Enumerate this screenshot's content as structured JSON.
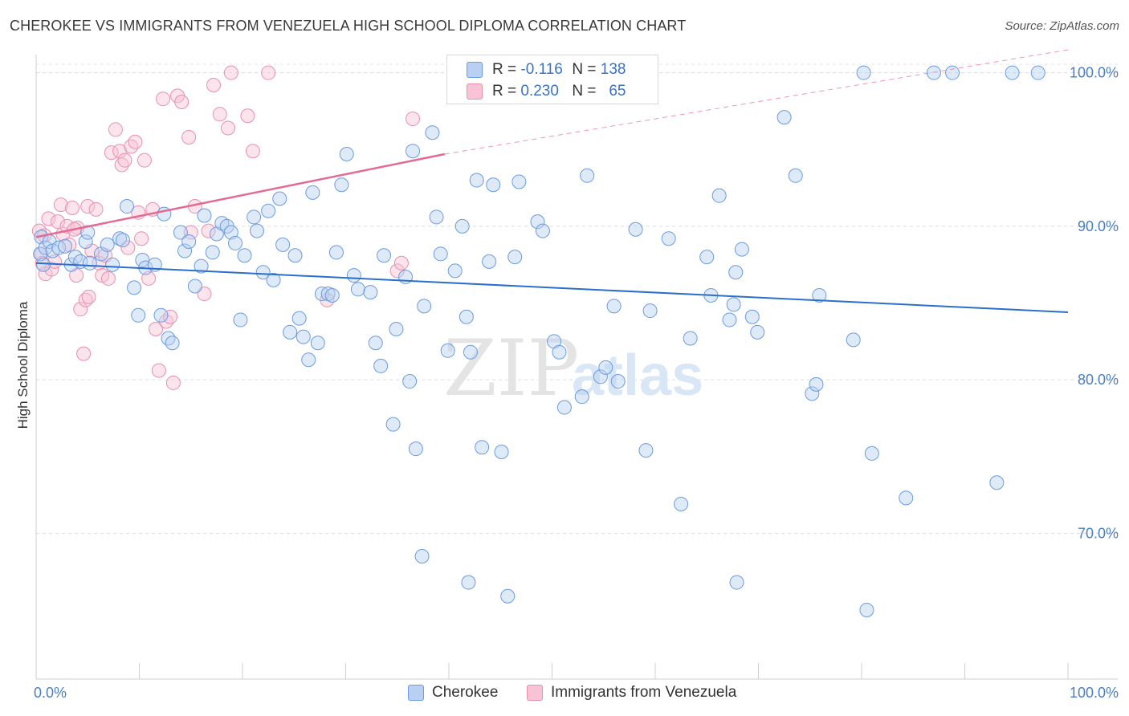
{
  "title": "CHEROKEE VS IMMIGRANTS FROM VENEZUELA HIGH SCHOOL DIPLOMA CORRELATION CHART",
  "source": "Source: ZipAtlas.com",
  "watermark": {
    "zip": "ZIP",
    "atlas": "atlas"
  },
  "legend_stats": {
    "r_label": "R =",
    "n_label": "N =",
    "rows": [
      {
        "r": "-0.116",
        "n": "138"
      },
      {
        "r": "0.230",
        "n": "65"
      }
    ]
  },
  "colors": {
    "cherokee_fill": "#b9d0f2",
    "cherokee_stroke": "#6b9be0",
    "cherokee_line": "#2a6fc9",
    "venezuela_fill": "#f8c3d4",
    "venezuela_stroke": "#ea8fac",
    "venezuela_line": "#e46a94",
    "tick_text": "#4a7fc4"
  },
  "chart_data": {
    "type": "scatter",
    "ylabel": "High School Diploma",
    "xlim": [
      0,
      100
    ],
    "ylim": [
      60.5,
      101.5
    ],
    "x_tick_labels": [
      "0.0%",
      "100.0%"
    ],
    "y_ticks": [
      {
        "value": 70,
        "label": "70.0%"
      },
      {
        "value": 80,
        "label": "80.0%"
      },
      {
        "value": 90,
        "label": "90.0%"
      },
      {
        "value": 100,
        "label": "100.0%"
      }
    ],
    "grid": "horizontal dashed",
    "legend_position": "bottom",
    "series": [
      {
        "name": "Cherokee",
        "trend": {
          "x": [
            0,
            100
          ],
          "y": [
            87.6,
            84.4
          ]
        },
        "points": [
          [
            0.4,
            88.2
          ],
          [
            0.5,
            89.3
          ],
          [
            0.7,
            87.5
          ],
          [
            0.9,
            88.6
          ],
          [
            1.3,
            89.0
          ],
          [
            1.6,
            88.4
          ],
          [
            2.2,
            88.6
          ],
          [
            2.8,
            88.7
          ],
          [
            3.4,
            87.5
          ],
          [
            3.8,
            88.0
          ],
          [
            4.3,
            87.7
          ],
          [
            4.8,
            89.0
          ],
          [
            5.0,
            89.6
          ],
          [
            5.2,
            87.6
          ],
          [
            6.3,
            88.2
          ],
          [
            6.9,
            88.8
          ],
          [
            7.4,
            87.5
          ],
          [
            8.1,
            89.2
          ],
          [
            8.4,
            89.1
          ],
          [
            8.8,
            91.3
          ],
          [
            9.5,
            86.0
          ],
          [
            9.9,
            84.2
          ],
          [
            10.3,
            87.8
          ],
          [
            10.6,
            87.3
          ],
          [
            11.5,
            87.5
          ],
          [
            12.1,
            84.2
          ],
          [
            12.4,
            90.8
          ],
          [
            12.8,
            82.7
          ],
          [
            13.2,
            82.4
          ],
          [
            14.0,
            89.6
          ],
          [
            14.4,
            88.4
          ],
          [
            14.8,
            89.0
          ],
          [
            15.4,
            86.1
          ],
          [
            16.0,
            87.4
          ],
          [
            16.3,
            90.7
          ],
          [
            17.1,
            88.3
          ],
          [
            17.5,
            89.5
          ],
          [
            18.0,
            90.2
          ],
          [
            18.5,
            90.0
          ],
          [
            18.9,
            89.6
          ],
          [
            19.3,
            88.9
          ],
          [
            19.8,
            83.9
          ],
          [
            20.2,
            88.1
          ],
          [
            21.1,
            90.6
          ],
          [
            21.4,
            89.7
          ],
          [
            22.0,
            87.0
          ],
          [
            22.5,
            91.0
          ],
          [
            23.0,
            86.5
          ],
          [
            23.6,
            91.8
          ],
          [
            23.9,
            88.8
          ],
          [
            24.6,
            83.1
          ],
          [
            25.1,
            88.1
          ],
          [
            25.5,
            84.0
          ],
          [
            25.9,
            82.8
          ],
          [
            26.4,
            81.3
          ],
          [
            26.8,
            92.2
          ],
          [
            27.3,
            82.4
          ],
          [
            27.7,
            85.6
          ],
          [
            28.3,
            85.6
          ],
          [
            28.7,
            85.5
          ],
          [
            29.1,
            88.3
          ],
          [
            29.6,
            92.7
          ],
          [
            30.1,
            94.7
          ],
          [
            30.8,
            86.8
          ],
          [
            31.2,
            85.9
          ],
          [
            32.4,
            85.7
          ],
          [
            32.9,
            82.4
          ],
          [
            33.4,
            80.9
          ],
          [
            33.7,
            88.1
          ],
          [
            34.6,
            77.1
          ],
          [
            34.9,
            83.3
          ],
          [
            35.8,
            86.7
          ],
          [
            36.2,
            79.9
          ],
          [
            36.5,
            94.9
          ],
          [
            36.8,
            75.5
          ],
          [
            37.6,
            84.8
          ],
          [
            38.4,
            96.1
          ],
          [
            38.8,
            90.6
          ],
          [
            39.2,
            88.2
          ],
          [
            39.9,
            81.9
          ],
          [
            40.6,
            87.1
          ],
          [
            41.3,
            90.0
          ],
          [
            41.7,
            84.1
          ],
          [
            42.1,
            81.8
          ],
          [
            42.7,
            93.0
          ],
          [
            43.2,
            75.6
          ],
          [
            43.9,
            87.7
          ],
          [
            44.3,
            92.7
          ],
          [
            45.1,
            75.3
          ],
          [
            46.4,
            88.0
          ],
          [
            46.8,
            92.9
          ],
          [
            47.4,
            100.0
          ],
          [
            48.6,
            90.3
          ],
          [
            49.1,
            89.7
          ],
          [
            50.2,
            82.5
          ],
          [
            50.7,
            81.8
          ],
          [
            51.2,
            78.2
          ],
          [
            52.5,
            100.0
          ],
          [
            52.9,
            78.9
          ],
          [
            53.4,
            93.3
          ],
          [
            54.7,
            80.2
          ],
          [
            55.2,
            80.8
          ],
          [
            56.0,
            84.8
          ],
          [
            56.4,
            79.9
          ],
          [
            58.1,
            89.8
          ],
          [
            59.1,
            75.4
          ],
          [
            59.5,
            84.5
          ],
          [
            61.3,
            89.2
          ],
          [
            62.5,
            71.9
          ],
          [
            63.4,
            82.7
          ],
          [
            65.0,
            88.0
          ],
          [
            65.4,
            85.5
          ],
          [
            66.2,
            92.0
          ],
          [
            67.2,
            83.9
          ],
          [
            67.6,
            84.9
          ],
          [
            68.4,
            88.5
          ],
          [
            69.4,
            84.1
          ],
          [
            69.9,
            83.1
          ],
          [
            72.5,
            97.1
          ],
          [
            73.6,
            93.3
          ],
          [
            75.2,
            79.1
          ],
          [
            75.6,
            79.7
          ],
          [
            75.9,
            85.5
          ],
          [
            79.2,
            82.6
          ],
          [
            80.2,
            100.0
          ],
          [
            81.0,
            75.2
          ],
          [
            84.3,
            72.3
          ],
          [
            87.0,
            100.0
          ],
          [
            88.8,
            100.0
          ],
          [
            93.1,
            73.3
          ],
          [
            94.6,
            100.0
          ],
          [
            97.1,
            100.0
          ],
          [
            37.4,
            68.5
          ],
          [
            41.9,
            66.8
          ],
          [
            45.7,
            65.9
          ],
          [
            67.9,
            66.8
          ],
          [
            80.5,
            65.0
          ],
          [
            67.8,
            87.0
          ]
        ]
      },
      {
        "name": "Immigrants from Venezuela",
        "trend": {
          "x": [
            0,
            39.6
          ],
          "y": [
            89.3,
            94.7
          ],
          "dashed_to": {
            "x": 100,
            "y": 101.5
          }
        },
        "points": [
          [
            0.3,
            89.7
          ],
          [
            0.5,
            88.2
          ],
          [
            0.6,
            87.6
          ],
          [
            0.8,
            89.4
          ],
          [
            0.9,
            86.9
          ],
          [
            1.2,
            90.5
          ],
          [
            1.5,
            87.2
          ],
          [
            1.8,
            87.7
          ],
          [
            2.1,
            90.3
          ],
          [
            2.4,
            91.4
          ],
          [
            2.6,
            89.5
          ],
          [
            3.0,
            90.0
          ],
          [
            3.2,
            88.8
          ],
          [
            3.5,
            91.2
          ],
          [
            3.9,
            86.8
          ],
          [
            4.0,
            89.9
          ],
          [
            4.3,
            84.6
          ],
          [
            4.6,
            81.7
          ],
          [
            4.8,
            85.2
          ],
          [
            5.0,
            91.3
          ],
          [
            5.1,
            85.4
          ],
          [
            5.4,
            88.4
          ],
          [
            5.8,
            91.1
          ],
          [
            6.1,
            87.6
          ],
          [
            6.4,
            86.8
          ],
          [
            6.7,
            88.1
          ],
          [
            7.0,
            86.6
          ],
          [
            7.3,
            94.8
          ],
          [
            7.7,
            96.3
          ],
          [
            8.1,
            94.9
          ],
          [
            8.3,
            94.0
          ],
          [
            8.6,
            94.3
          ],
          [
            8.9,
            88.6
          ],
          [
            9.2,
            95.2
          ],
          [
            9.6,
            95.5
          ],
          [
            9.9,
            90.9
          ],
          [
            10.2,
            89.2
          ],
          [
            10.5,
            94.3
          ],
          [
            10.9,
            86.6
          ],
          [
            11.3,
            91.1
          ],
          [
            11.6,
            83.3
          ],
          [
            11.9,
            80.6
          ],
          [
            12.3,
            98.3
          ],
          [
            12.6,
            83.8
          ],
          [
            13.0,
            84.1
          ],
          [
            13.3,
            79.8
          ],
          [
            13.7,
            98.5
          ],
          [
            14.1,
            98.1
          ],
          [
            14.8,
            95.8
          ],
          [
            15.4,
            91.3
          ],
          [
            16.3,
            85.6
          ],
          [
            16.7,
            89.7
          ],
          [
            17.2,
            99.2
          ],
          [
            17.8,
            97.3
          ],
          [
            18.6,
            96.4
          ],
          [
            18.9,
            100.0
          ],
          [
            20.5,
            97.2
          ],
          [
            21.0,
            94.9
          ],
          [
            22.5,
            100.0
          ],
          [
            28.2,
            85.2
          ],
          [
            35.0,
            87.1
          ],
          [
            35.4,
            87.6
          ],
          [
            36.5,
            97.0
          ],
          [
            15.0,
            89.6
          ],
          [
            3.7,
            89.8
          ]
        ]
      }
    ]
  }
}
